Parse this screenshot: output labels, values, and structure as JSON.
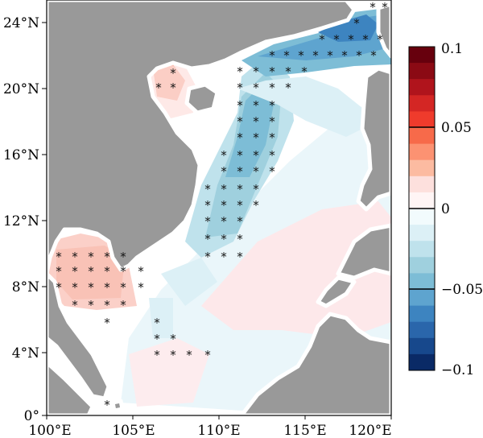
{
  "map": {
    "latitude_labels": [
      "24°N",
      "20°N",
      "16°N",
      "12°N",
      "8°N",
      "4°N",
      "0°"
    ],
    "longitude_labels": [
      "100°E",
      "105°E",
      "110°E",
      "115°E",
      "120°E"
    ],
    "land_color": "#999999",
    "outline_color": "#000000"
  },
  "colorbar": {
    "labels": [
      "0.1",
      "0.05",
      "0",
      "−0.05",
      "−0.1"
    ],
    "colors": [
      "#67000d",
      "#8b0a14",
      "#b0141c",
      "#d42624",
      "#ef3b2c",
      "#f76a4a",
      "#fc9272",
      "#fcbba1",
      "#fde0dd",
      "#fff5f5",
      "#f2fbfd",
      "#dcf0f6",
      "#bfe2ec",
      "#9fd0de",
      "#7dbdd6",
      "#5ea4cf",
      "#3d84c0",
      "#2a66ab",
      "#17488c",
      "#0a2a66"
    ]
  },
  "significance_marker": "*"
}
